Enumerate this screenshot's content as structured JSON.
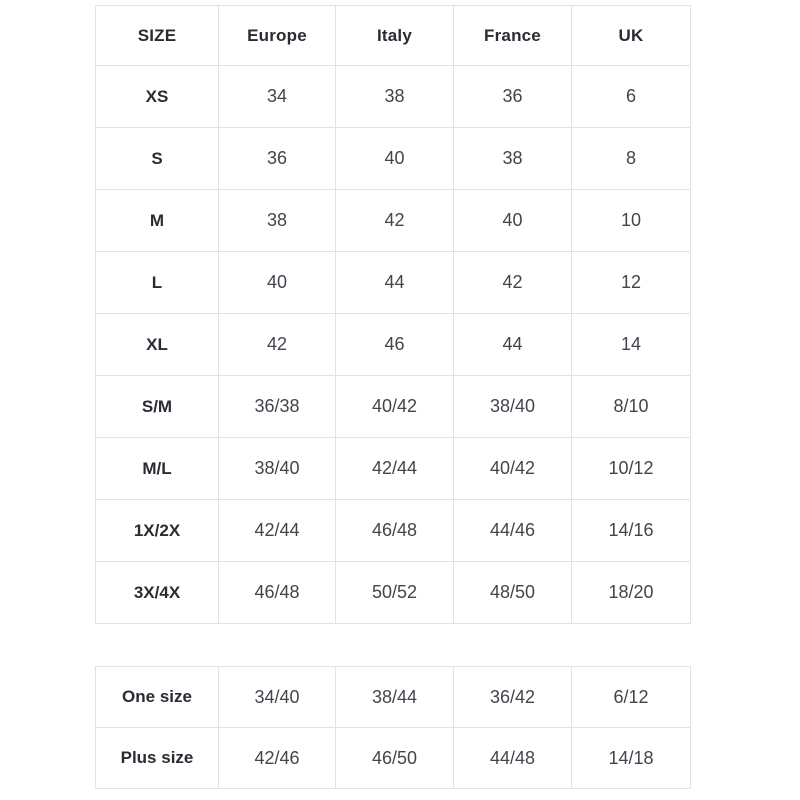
{
  "size_table": {
    "columns": [
      "SIZE",
      "Europe",
      "Italy",
      "France",
      "UK"
    ],
    "rows": [
      {
        "label": "XS",
        "values": [
          "34",
          "38",
          "36",
          "6"
        ]
      },
      {
        "label": "S",
        "values": [
          "36",
          "40",
          "38",
          "8"
        ]
      },
      {
        "label": "M",
        "values": [
          "38",
          "42",
          "40",
          "10"
        ]
      },
      {
        "label": "L",
        "values": [
          "40",
          "44",
          "42",
          "12"
        ]
      },
      {
        "label": "XL",
        "values": [
          "42",
          "46",
          "44",
          "14"
        ]
      },
      {
        "label": "S/M",
        "values": [
          "36/38",
          "40/42",
          "38/40",
          "8/10"
        ]
      },
      {
        "label": "M/L",
        "values": [
          "38/40",
          "42/44",
          "40/42",
          "10/12"
        ]
      },
      {
        "label": "1X/2X",
        "values": [
          "42/44",
          "46/48",
          "44/46",
          "14/16"
        ]
      },
      {
        "label": "3X/4X",
        "values": [
          "46/48",
          "50/52",
          "48/50",
          "18/20"
        ]
      }
    ]
  },
  "special_sizes_table": {
    "rows": [
      {
        "label": "One size",
        "values": [
          "34/40",
          "38/44",
          "36/42",
          "6/12"
        ]
      },
      {
        "label": "Plus size",
        "values": [
          "42/46",
          "46/50",
          "44/48",
          "14/18"
        ]
      }
    ]
  },
  "colors": {
    "border": "#e2e2e5",
    "header_text": "#2b2b33",
    "cell_text": "#44444c",
    "background": "#ffffff"
  }
}
